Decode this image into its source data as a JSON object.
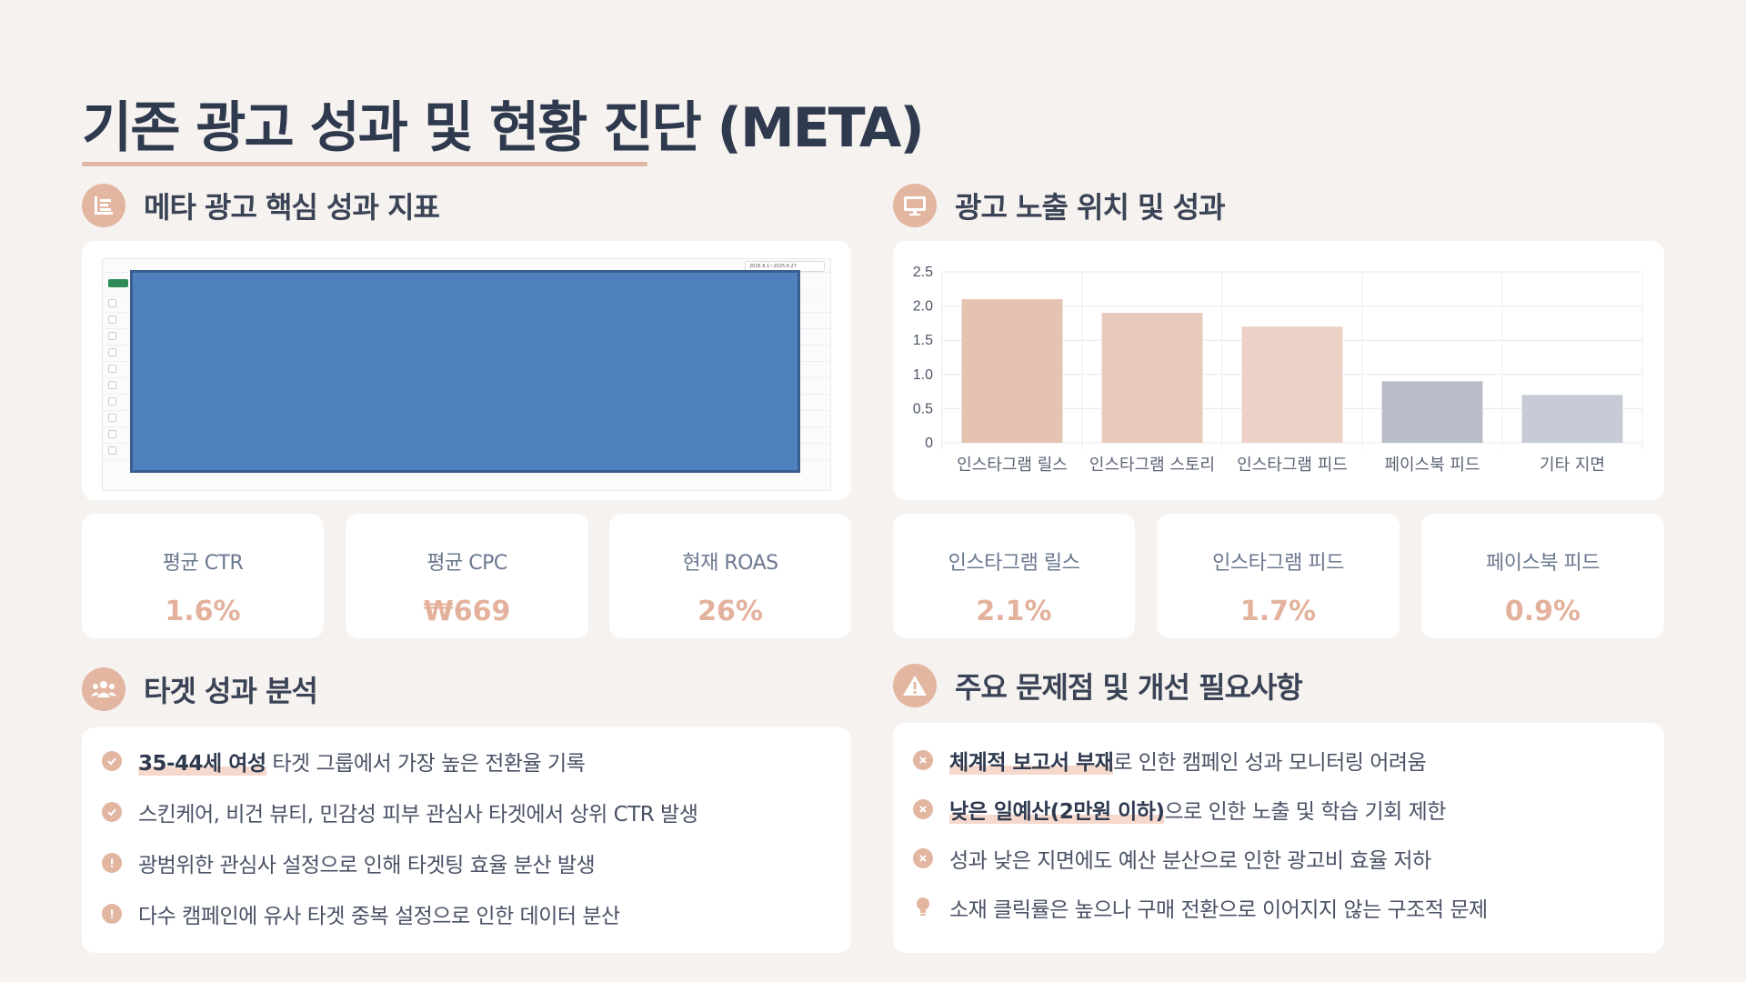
{
  "title": "기존 광고 성과 및 현황 진단 (META)",
  "sections": {
    "kpi_title": "메타 광고 핵심 성과 지표",
    "placement_title": "광고 노출 위치 및 성과",
    "target_title": "타겟 성과 분석",
    "issues_title": "주요 문제점 및 개선 필요사항"
  },
  "screenshot": {
    "date_range": "2025.6.1~2025.6.27"
  },
  "kpis": [
    {
      "label": "평균 CTR",
      "value": "1.6%"
    },
    {
      "label": "평균 CPC",
      "value": "₩669"
    },
    {
      "label": "현재 ROAS",
      "value": "26%"
    }
  ],
  "placement_kpis": [
    {
      "label": "인스타그램 릴스",
      "value": "2.1%"
    },
    {
      "label": "인스타그램 피드",
      "value": "1.7%"
    },
    {
      "label": "페이스북 피드",
      "value": "0.9%"
    }
  ],
  "chart_data": {
    "type": "bar",
    "categories": [
      "인스타그램 릴스",
      "인스타그램 스토리",
      "인스타그램 피드",
      "페이스북 피드",
      "기타 지면"
    ],
    "values": [
      2.1,
      1.9,
      1.7,
      0.9,
      0.7
    ],
    "colors": [
      "#e4c3b3",
      "#e8cabc",
      "#ecd2c6",
      "#b8bdc9",
      "#c6cbd5"
    ],
    "ylim": [
      0,
      2.5
    ],
    "yticks": [
      "0",
      "0.5",
      "1.0",
      "1.5",
      "2.0",
      "2.5"
    ],
    "grid": true
  },
  "targets": [
    {
      "icon": "check",
      "strong": "35-44세 여성",
      "text": " 타겟 그룹에서 가장 높은 전환율 기록"
    },
    {
      "icon": "check",
      "strong": "",
      "text": "스킨케어, 비건 뷰티, 민감성 피부 관심사 타겟에서 상위 CTR 발생"
    },
    {
      "icon": "alert",
      "strong": "",
      "text": "광범위한 관심사 설정으로 인해 타겟팅 효율 분산 발생"
    },
    {
      "icon": "alert",
      "strong": "",
      "text": "다수 캠페인에 유사 타겟 중복 설정으로 인한 데이터 분산"
    }
  ],
  "issues": [
    {
      "icon": "x",
      "strong": "체계적 보고서 부재",
      "text": "로 인한 캠페인 성과 모니터링 어려움"
    },
    {
      "icon": "x",
      "strong": "낮은 일예산(2만원 이하)",
      "text": "으로 인한 노출 및 학습 기회 제한"
    },
    {
      "icon": "x",
      "strong": "",
      "text": "성과 낮은 지면에도 예산 분산으로 인한 광고비 효율 저하"
    },
    {
      "icon": "bulb",
      "strong": "",
      "text": "소재 클릭률은 높으나 구매 전환으로 이어지지 않는 구조적 문제"
    }
  ],
  "colors": {
    "accent": "#e2b6a1",
    "value": "#e3b19c",
    "heading": "#2f3a4f",
    "background": "#f6f2ef"
  }
}
